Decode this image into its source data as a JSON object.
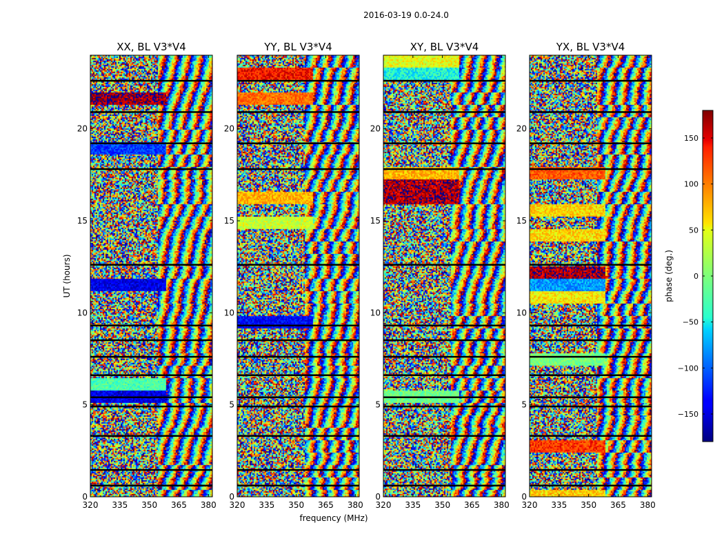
{
  "figure": {
    "suptitle": "2016-03-19 0.0-24.0",
    "xlabel": "frequency (MHz)",
    "ylabel": "UT (hours)",
    "colorbar_label": "phase (deg.)",
    "colorbar_ticks": [
      150,
      100,
      50,
      0,
      -50,
      -100,
      -150
    ],
    "colorbar_ticks_text": [
      "150",
      "100",
      "50",
      "0",
      "−50",
      "−100",
      "−150"
    ],
    "colorbar_range": [
      -180,
      180
    ],
    "colormap": "jet"
  },
  "chart_data": [
    {
      "type": "heatmap",
      "title": "XX, BL V3*V4",
      "xlim": [
        320,
        382
      ],
      "ylim": [
        0,
        24
      ],
      "xticks": [
        320,
        335,
        350,
        365,
        380
      ],
      "yticks": [
        0,
        5,
        10,
        15,
        20
      ],
      "value": "visibility phase (deg.) vs frequency and UT, baseline V3*V4",
      "flagged_rows_ut": [
        0.6,
        1.45,
        3.3,
        4.9,
        5.4,
        6.6,
        7.6,
        8.5,
        9.3,
        12.6,
        17.8,
        19.2,
        20.9,
        22.6
      ]
    },
    {
      "type": "heatmap",
      "title": "YY, BL V3*V4",
      "xlim": [
        320,
        382
      ],
      "ylim": [
        0,
        24
      ],
      "xticks": [
        320,
        335,
        350,
        365,
        380
      ],
      "yticks": [
        0,
        5,
        10,
        15,
        20
      ],
      "value": "visibility phase (deg.) vs frequency and UT, baseline V3*V4",
      "flagged_rows_ut": [
        0.6,
        1.45,
        3.3,
        4.9,
        5.4,
        6.6,
        7.6,
        8.5,
        9.3,
        12.6,
        17.8,
        19.2,
        20.9,
        22.6
      ]
    },
    {
      "type": "heatmap",
      "title": "XY, BL V3*V4",
      "xlim": [
        320,
        382
      ],
      "ylim": [
        0,
        24
      ],
      "xticks": [
        320,
        335,
        350,
        365,
        380
      ],
      "yticks": [
        0,
        5,
        10,
        15,
        20
      ],
      "value": "visibility phase (deg.) vs frequency and UT, baseline V3*V4",
      "flagged_rows_ut": [
        0.6,
        1.45,
        3.3,
        4.9,
        5.4,
        6.6,
        7.6,
        8.5,
        9.3,
        12.6,
        17.8,
        19.2,
        20.9,
        22.6
      ]
    },
    {
      "type": "heatmap",
      "title": "YX, BL V3*V4",
      "xlim": [
        320,
        382
      ],
      "ylim": [
        0,
        24
      ],
      "xticks": [
        320,
        335,
        350,
        365,
        380
      ],
      "yticks": [
        0,
        5,
        10,
        15,
        20
      ],
      "value": "visibility phase (deg.) vs frequency and UT, baseline V3*V4",
      "flagged_rows_ut": [
        0.6,
        1.45,
        3.3,
        4.9,
        5.4,
        6.6,
        7.6,
        8.5,
        9.3,
        12.6,
        17.8,
        19.2,
        20.9,
        22.6
      ]
    }
  ]
}
